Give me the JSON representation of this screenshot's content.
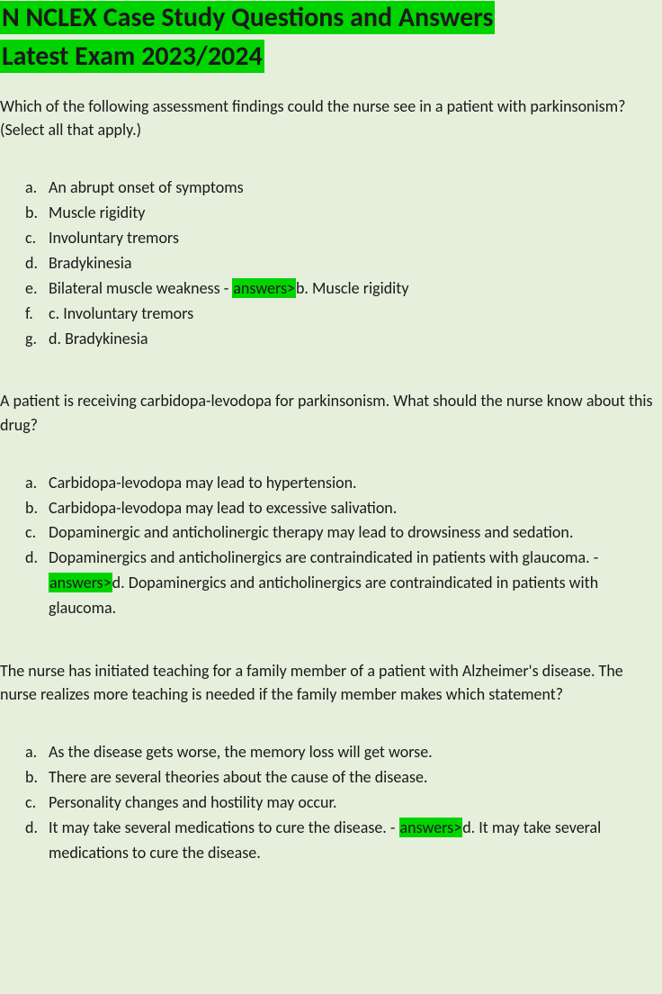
{
  "colors": {
    "page_bg": "#e6efdc",
    "highlight_bg": "#00d400",
    "text": "#1a1a1a"
  },
  "fonts": {
    "body_size": 18,
    "title_size": 30
  },
  "title": {
    "line1": "N NCLEX Case Study Questions and Answers",
    "line2_leading_space": " ",
    "line2": "Latest Exam 2023/2024"
  },
  "q1": {
    "text": "Which of the following assessment findings could the nurse see in a patient with parkinsonism? (Select all that apply.)",
    "opts": {
      "a": "An abrupt onset of symptoms",
      "b": "Muscle rigidity",
      "c": "Involuntary tremors",
      "d": "Bradykinesia",
      "e_pre": "Bilateral muscle weakness - ",
      "e_hl": "answers>",
      "e_post": "b. Muscle rigidity",
      "f": "c. Involuntary tremors",
      "g": "d. Bradykinesia"
    }
  },
  "q2": {
    "text": "A patient is receiving carbidopa-levodopa for parkinsonism. What should the nurse know about this drug?",
    "opts": {
      "a": "Carbidopa-levodopa may lead to hypertension.",
      "b": "Carbidopa-levodopa may lead to excessive salivation.",
      "c": "Dopaminergic and anticholinergic therapy may lead to drowsiness and sedation.",
      "d_pre": "Dopaminergics and anticholinergics are contraindicated in patients with glaucoma. - ",
      "d_hl": "answers>",
      "d_post": "d. Dopaminergics and anticholinergics are contraindicated in patients with glaucoma."
    }
  },
  "q3": {
    "text": "The nurse has initiated teaching for a family member of a patient with Alzheimer's disease. The nurse realizes more teaching is needed if the family member makes which statement?",
    "opts": {
      "a": "As the disease gets worse, the memory loss will get worse.",
      "b": "There are several theories about the cause of the disease.",
      "c": "Personality changes and hostility may occur.",
      "d_pre": "It may take several medications to cure the disease. - ",
      "d_hl": "answers>",
      "d_post": "d. It may take several medications to cure the disease."
    }
  },
  "letters": {
    "a": "a.",
    "b": "b.",
    "c": "c.",
    "d": "d.",
    "e": "e.",
    "f": "f.",
    "g": "g."
  }
}
